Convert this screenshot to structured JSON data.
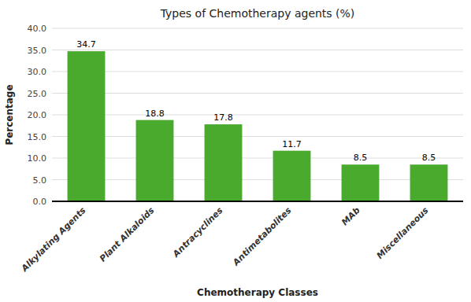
{
  "chart_data": {
    "type": "bar",
    "title": "Types of Chemotherapy agents (%)",
    "xlabel": "Chemotherapy Classes",
    "ylabel": "Percentage",
    "categories": [
      "Alkylating Agents",
      "Plant Alkaloids",
      "Antracyclines",
      "Antimetabolites",
      "MAb",
      "Miscellaneous"
    ],
    "values": [
      34.7,
      18.8,
      17.8,
      11.7,
      8.5,
      8.5
    ],
    "color": "#4aaa2e",
    "ylim": [
      0,
      40.0
    ],
    "yticks": [
      {
        "value": 0.0,
        "label": "0.0"
      },
      {
        "value": 5.0,
        "label": "5.0"
      },
      {
        "value": 10.0,
        "label": "10.0"
      },
      {
        "value": 15.0,
        "label": "15.0"
      },
      {
        "value": 20.0,
        "label": "20.0"
      },
      {
        "value": 25.0,
        "label": "25.0"
      },
      {
        "value": 30.0,
        "label": "30.0"
      },
      {
        "value": 35.0,
        "label": "35.0"
      },
      {
        "value": 40.0,
        "label": "40.0"
      }
    ],
    "grid": true,
    "data_labels": true
  }
}
